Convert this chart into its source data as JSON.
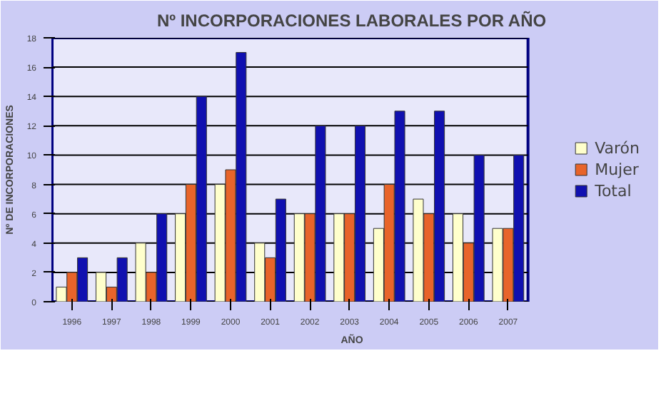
{
  "chart_data": {
    "type": "bar",
    "title": "Nº INCORPORACIONES LABORALES POR AÑO",
    "xlabel": "AÑO",
    "ylabel": "Nº DE INCORPORACIONES",
    "categories": [
      "1996",
      "1997",
      "1998",
      "1999",
      "2000",
      "2001",
      "2002",
      "2003",
      "2004",
      "2005",
      "2006",
      "2007"
    ],
    "series": [
      {
        "name": "Varón",
        "color": "#ffffcc",
        "values": [
          1,
          2,
          4,
          6,
          8,
          4,
          6,
          6,
          5,
          7,
          6,
          5
        ]
      },
      {
        "name": "Mujer",
        "color": "#e8642a",
        "values": [
          2,
          1,
          2,
          8,
          9,
          3,
          6,
          6,
          8,
          6,
          4,
          5
        ]
      },
      {
        "name": "Total",
        "color": "#1010b0",
        "values": [
          3,
          3,
          6,
          14,
          17,
          7,
          12,
          12,
          13,
          13,
          10,
          10
        ]
      }
    ],
    "ylim": [
      0,
      18
    ],
    "yticks": [
      0,
      2,
      4,
      6,
      8,
      10,
      12,
      14,
      16,
      18
    ],
    "grid": "y",
    "legend": "right"
  }
}
